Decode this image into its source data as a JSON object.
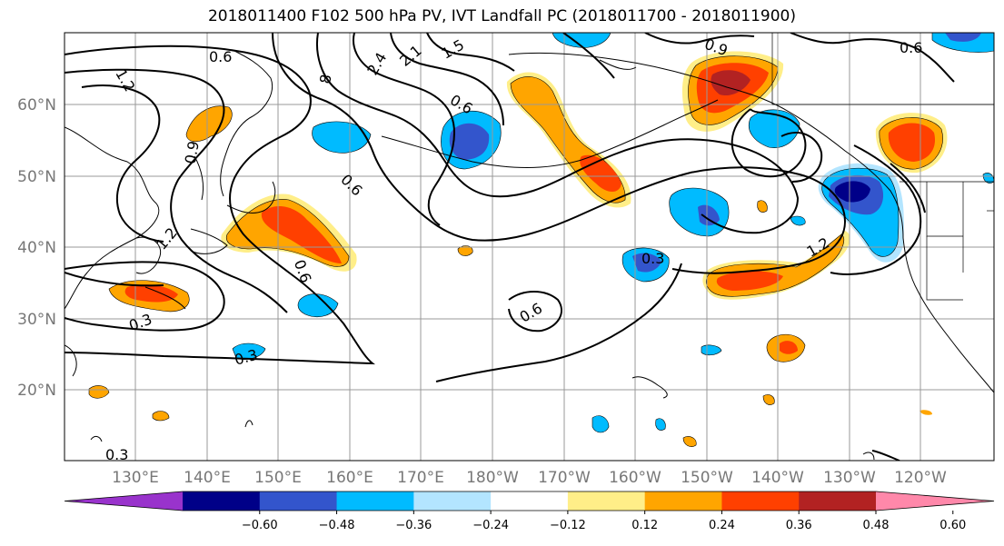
{
  "title": "2018011400 F102 500 hPa PV, IVT Landfall PC (2018011700 - 2018011900)",
  "map": {
    "lat_ticks": [
      "60°N",
      "50°N",
      "40°N",
      "30°N",
      "20°N"
    ],
    "lon_ticks": [
      "130°E",
      "140°E",
      "150°E",
      "160°E",
      "170°E",
      "180°W",
      "170°W",
      "160°W",
      "150°W",
      "140°W",
      "130°W",
      "120°W"
    ],
    "contour_labels": [
      {
        "text": "0.6",
        "id": "c-0-6-a"
      },
      {
        "text": "1.2",
        "id": "c-1-2-a"
      },
      {
        "text": "0.9",
        "id": "c-0-9-a"
      },
      {
        "text": "1.2",
        "id": "c-1-2-b"
      },
      {
        "text": "8",
        "id": "c-8"
      },
      {
        "text": "2.4",
        "id": "c-2-4"
      },
      {
        "text": "2.1",
        "id": "c-2-1"
      },
      {
        "text": "1.5",
        "id": "c-1-5"
      },
      {
        "text": "0.6",
        "id": "c-0-6-b"
      },
      {
        "text": "0.6",
        "id": "c-0-6-c"
      },
      {
        "text": "0.9",
        "id": "c-0-9-b"
      },
      {
        "text": "0.6",
        "id": "c-0-6-d"
      },
      {
        "text": "0.6",
        "id": "c-0-6-e"
      },
      {
        "text": "0.3",
        "id": "c-0-3-a"
      },
      {
        "text": "0.3",
        "id": "c-0-3-b"
      },
      {
        "text": "0.6",
        "id": "c-0-6-f"
      },
      {
        "text": "0.3",
        "id": "c-0-3-c"
      },
      {
        "text": "1.2",
        "id": "c-1-2-c"
      },
      {
        "text": "0.3",
        "id": "c-0-3-d"
      }
    ]
  },
  "colorbar": {
    "colors": [
      "#9933cc",
      "#000088",
      "#3355cc",
      "#00bbff",
      "#b3e5ff",
      "#ffffff",
      "#ffee88",
      "#ffa500",
      "#ff4000",
      "#b22222",
      "#ff88aa"
    ],
    "tick_labels": [
      "−0.60",
      "−0.48",
      "−0.36",
      "−0.24",
      "−0.12",
      "0.12",
      "0.24",
      "0.36",
      "0.48",
      "0.60"
    ]
  }
}
